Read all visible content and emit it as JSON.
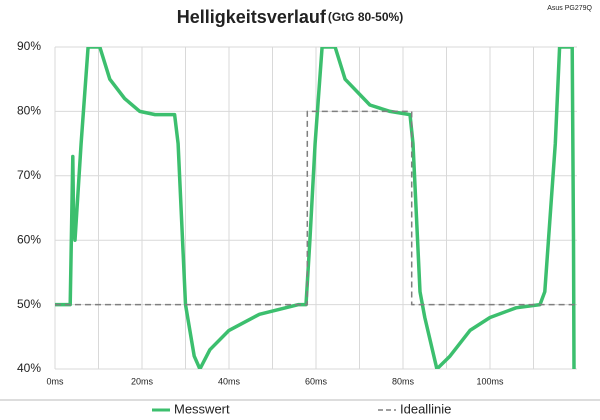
{
  "chart_data": {
    "type": "line",
    "title": "Helligkeitsverlauf",
    "subtitle": "(GtG 80-50%)",
    "note": "Asus PG279Q",
    "xlim": [
      0,
      120
    ],
    "ylim": [
      40,
      90
    ],
    "xticks": [
      {
        "value": 0,
        "label": "0ms"
      },
      {
        "value": 20,
        "label": "20ms"
      },
      {
        "value": 40,
        "label": "40ms"
      },
      {
        "value": 60,
        "label": "60ms"
      },
      {
        "value": 80,
        "label": "80ms"
      },
      {
        "value": 100,
        "label": "100ms"
      }
    ],
    "xminor_ticks": [
      10,
      30,
      50,
      70,
      90,
      110
    ],
    "yticks": [
      {
        "value": 40,
        "label": "40%"
      },
      {
        "value": 50,
        "label": "50%"
      },
      {
        "value": 60,
        "label": "60%"
      },
      {
        "value": 70,
        "label": "70%"
      },
      {
        "value": 80,
        "label": "80%"
      },
      {
        "value": 90,
        "label": "90%"
      }
    ],
    "grid": true,
    "legend": "bottom",
    "series": [
      {
        "name": "Messwert",
        "color": "#3cbf6e",
        "dashed": false,
        "x": [
          0,
          3.5,
          4.1,
          4.3,
          4.6,
          6,
          7.6,
          10.3,
          12.6,
          16,
          19.5,
          23,
          27.5,
          28.3,
          30,
          32,
          33.3,
          35.6,
          40,
          47,
          56,
          57.7,
          58.6,
          59.8,
          61.4,
          64.4,
          66.7,
          72.4,
          77,
          81.6,
          82.3,
          83.9,
          85,
          87.8,
          90.8,
          95.4,
          100,
          106,
          111.5,
          112.6,
          115,
          116,
          118.9,
          119.2,
          119.3
        ],
        "values": [
          50,
          50,
          73,
          62,
          60,
          75,
          90,
          90,
          85,
          82,
          80,
          79.5,
          79.5,
          75,
          50,
          42,
          40,
          43,
          46,
          48.5,
          50,
          50,
          60,
          75,
          90,
          90,
          85,
          81,
          80,
          79.5,
          75,
          52,
          48,
          40,
          42,
          46,
          48,
          49.5,
          50,
          52,
          75,
          90,
          90,
          60,
          40
        ]
      },
      {
        "name": "Ideallinie",
        "color": "#7f7f7f",
        "dashed": true,
        "x": [
          0,
          58,
          58,
          82,
          82,
          120
        ],
        "values": [
          50,
          50,
          80,
          80,
          50,
          50
        ]
      }
    ]
  }
}
